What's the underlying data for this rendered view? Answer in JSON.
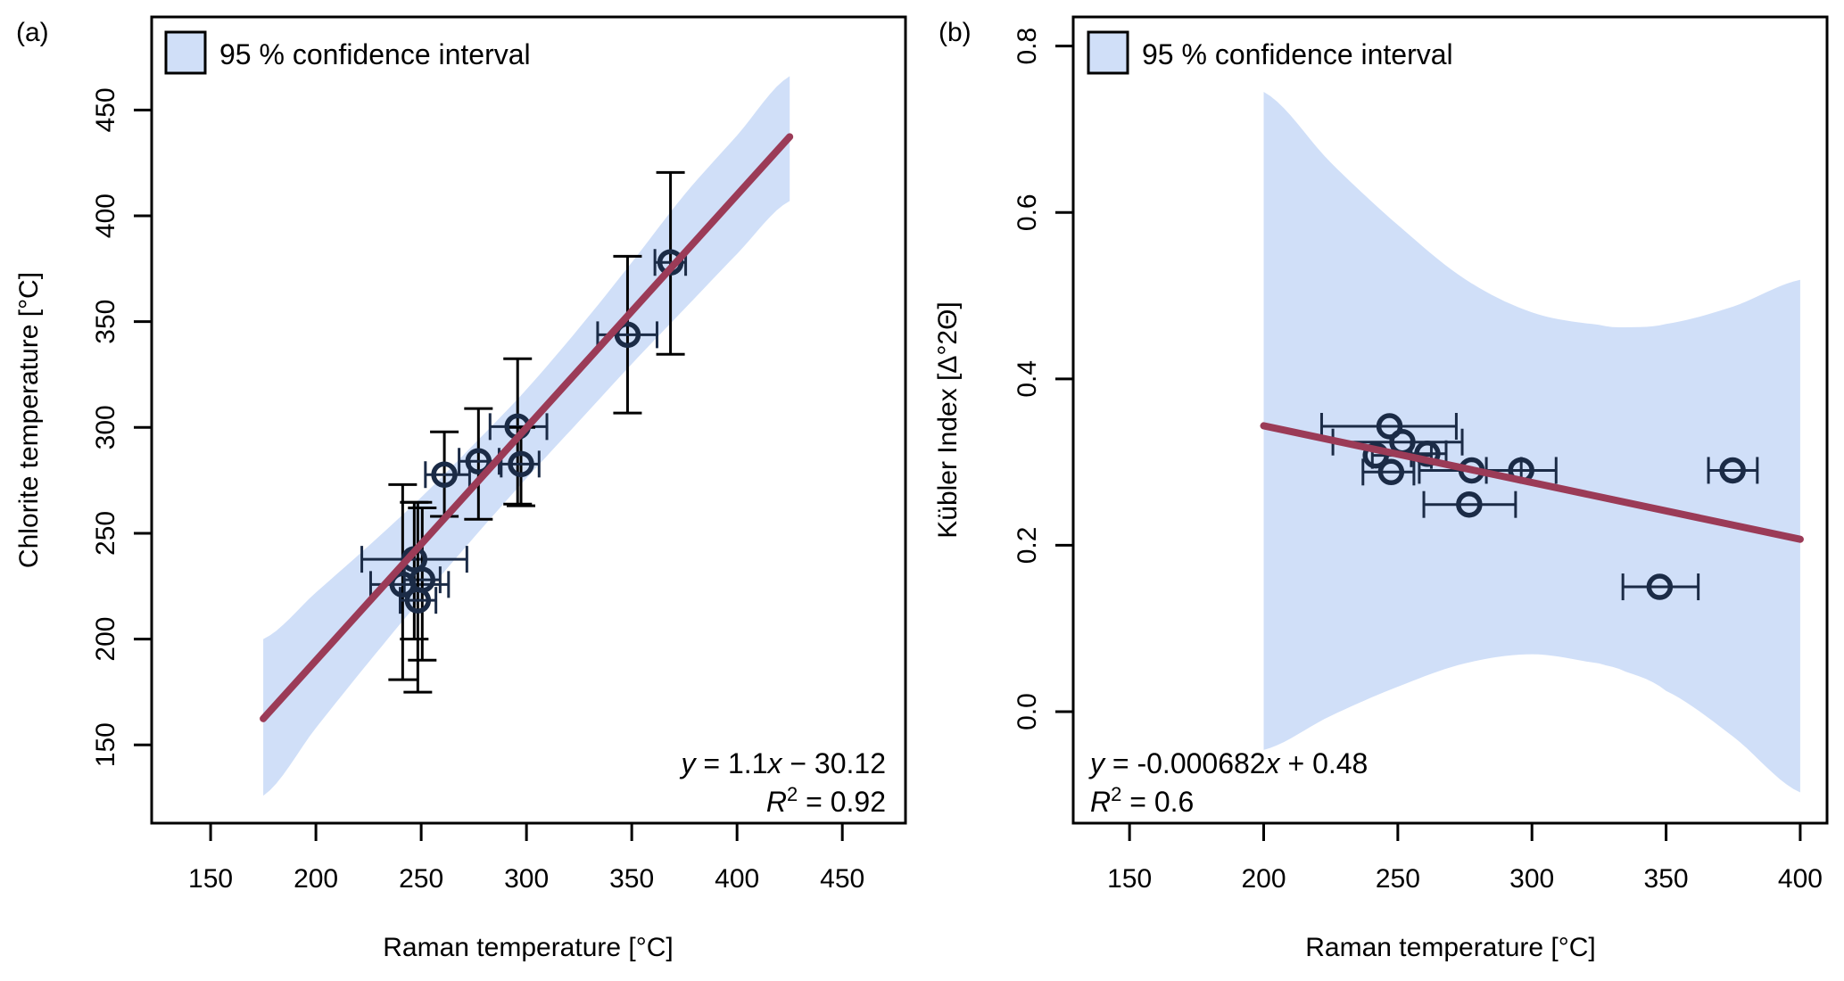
{
  "colors": {
    "band": "#d0dff8",
    "fit_line": "#9b3b57",
    "point": "#1b2b46",
    "axis": "#000000",
    "error_bar_y": "#000000",
    "error_bar_x": "#1b2b46"
  },
  "chart_data": [
    {
      "panel_label": "(a)",
      "type": "scatter",
      "xlabel": "Raman temperature [°C]",
      "ylabel": "Chlorite temperature [°C]",
      "xlim": [
        122,
        480
      ],
      "ylim": [
        113,
        494
      ],
      "xticks": [
        150,
        200,
        250,
        300,
        350,
        400,
        450
      ],
      "yticks": [
        150,
        200,
        250,
        300,
        350,
        400,
        450
      ],
      "legend": {
        "label": "95 % confidence interval",
        "position": "top-left"
      },
      "fit": {
        "slope": 1.1,
        "intercept": -30.12,
        "x_range": [
          175,
          425
        ]
      },
      "equation": {
        "lhs": "y",
        "eq": " = 1.1",
        "var": "x",
        "rest": " − 30.12",
        "r2_label": "R",
        "r2_sup": "2",
        "r2_value": " = 0.92",
        "position": "bottom-right"
      },
      "band": {
        "x": [
          175,
          200,
          225,
          250,
          275,
          300,
          325,
          350,
          375,
          400,
          425
        ],
        "lower": [
          126,
          158,
          189,
          219,
          248,
          276,
          303,
          330,
          356,
          382,
          407
        ],
        "upper": [
          200,
          222,
          244,
          267,
          292,
          318,
          347,
          378,
          410,
          438,
          466
        ]
      },
      "points": [
        {
          "x": 368.4,
          "y": 378.0,
          "xerr": [
            361,
            375.6
          ],
          "yerr": [
            334.6,
            420.5
          ]
        },
        {
          "x": 348.0,
          "y": 343.8,
          "xerr": [
            333.8,
            362.0
          ],
          "yerr": [
            306.8,
            380.9
          ]
        },
        {
          "x": 295.8,
          "y": 300.4,
          "xerr": [
            282.7,
            309.7
          ],
          "yerr": [
            263.8,
            332.5
          ]
        },
        {
          "x": 277.2,
          "y": 284.0,
          "xerr": [
            268.0,
            287.0
          ],
          "yerr": [
            256.6,
            308.9
          ]
        },
        {
          "x": 297.4,
          "y": 282.7,
          "xerr": [
            288.0,
            306.0
          ],
          "yerr": [
            263.0,
            300.0
          ]
        },
        {
          "x": 261.0,
          "y": 277.7,
          "xerr": [
            252.0,
            273.0
          ],
          "yerr": [
            258.0,
            297.9
          ]
        },
        {
          "x": 246.7,
          "y": 237.7,
          "xerr": [
            221.8,
            271.7
          ],
          "yerr": [
            200.0,
            264.6
          ]
        },
        {
          "x": 241.2,
          "y": 225.8,
          "xerr": [
            226.0,
            263.0
          ],
          "yerr": [
            180.8,
            273.0
          ]
        },
        {
          "x": 250.5,
          "y": 228.0,
          "xerr": [
            242.0,
            259.0
          ],
          "yerr": [
            190.0,
            262.0
          ]
        },
        {
          "x": 248.4,
          "y": 218.3,
          "xerr": [
            240.0,
            257.0
          ],
          "yerr": [
            174.9,
            264.6
          ]
        }
      ]
    },
    {
      "panel_label": "(b)",
      "type": "scatter",
      "xlabel": "Raman temperature [°C]",
      "ylabel": "Kübler Index [Δ°2Θ]",
      "xlim": [
        129,
        410
      ],
      "ylim": [
        -0.134,
        0.835
      ],
      "xticks": [
        150,
        200,
        250,
        300,
        350,
        400
      ],
      "yticks": [
        0.0,
        0.2,
        0.4,
        0.6,
        0.8
      ],
      "ytick_labels": [
        "0.0",
        "0.2",
        "0.4",
        "0.6",
        "0.8"
      ],
      "legend": {
        "label": "95 % confidence interval",
        "position": "top-left"
      },
      "fit": {
        "slope": -0.000682,
        "intercept": 0.48,
        "x_range": [
          200,
          400
        ]
      },
      "equation": {
        "lhs": "y",
        "eq": " = -0.000682",
        "var": "x",
        "rest": " + 0.48",
        "r2_label": "R",
        "r2_sup": "2",
        "r2_value": " = 0.6",
        "position": "bottom-left"
      },
      "band": {
        "x": [
          200,
          225,
          250,
          275,
          300,
          325,
          335,
          350,
          375,
          400
        ],
        "lower": [
          -0.046,
          -0.005,
          0.03,
          0.058,
          0.069,
          0.058,
          0.048,
          0.025,
          -0.03,
          -0.097
        ],
        "upper": [
          0.745,
          0.66,
          0.585,
          0.52,
          0.48,
          0.465,
          0.462,
          0.466,
          0.487,
          0.519
        ]
      },
      "points": [
        {
          "x": 246.9,
          "y": 0.343,
          "xerr": [
            221.6,
            271.8
          ]
        },
        {
          "x": 251.7,
          "y": 0.324,
          "xerr": [
            225.8,
            274.0
          ]
        },
        {
          "x": 241.8,
          "y": 0.308,
          "xerr": [
            240.5,
            262.5
          ]
        },
        {
          "x": 261.0,
          "y": 0.31,
          "xerr": [
            255.0,
            268.0
          ]
        },
        {
          "x": 247.5,
          "y": 0.288,
          "xerr": [
            237.0,
            256.0
          ]
        },
        {
          "x": 277.5,
          "y": 0.29,
          "xerr": [
            258.0,
            296.0
          ]
        },
        {
          "x": 296.0,
          "y": 0.29,
          "xerr": [
            283.0,
            309.0
          ]
        },
        {
          "x": 276.6,
          "y": 0.249,
          "xerr": [
            259.7,
            293.9
          ]
        },
        {
          "x": 374.8,
          "y": 0.29,
          "xerr": [
            365.8,
            384.0
          ]
        },
        {
          "x": 347.6,
          "y": 0.15,
          "xerr": [
            333.9,
            362.0
          ]
        }
      ]
    }
  ]
}
